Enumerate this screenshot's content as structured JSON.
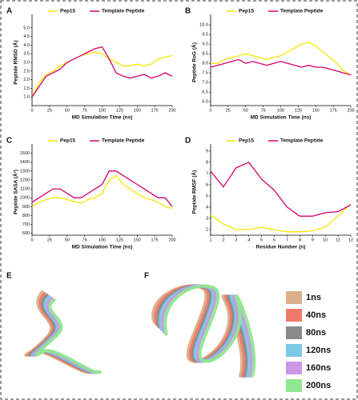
{
  "chart_data": [
    {
      "type": "line",
      "label": "A",
      "xlabel": "MD Simulation Time (ns)",
      "ylabel": "Peptide RMSD (Å)",
      "x": [
        0,
        10,
        20,
        30,
        40,
        50,
        60,
        70,
        80,
        90,
        100,
        110,
        120,
        130,
        140,
        150,
        160,
        170,
        180,
        190,
        200
      ],
      "series": [
        {
          "name": "Pep15",
          "color": "#f5e800",
          "values": [
            1.0,
            1.8,
            2.3,
            2.5,
            2.8,
            3.0,
            3.2,
            3.4,
            3.5,
            3.6,
            3.5,
            3.2,
            3.0,
            2.8,
            2.8,
            2.9,
            2.8,
            2.9,
            3.2,
            3.3,
            3.4
          ]
        },
        {
          "name": "Template Peptide",
          "color": "#d4006e",
          "values": [
            1.0,
            1.6,
            2.2,
            2.4,
            2.6,
            3.0,
            3.2,
            3.4,
            3.6,
            3.8,
            3.9,
            3.2,
            2.4,
            2.2,
            2.1,
            2.2,
            2.3,
            2.1,
            2.2,
            2.4,
            2.2
          ]
        }
      ],
      "xlim": [
        0,
        200
      ],
      "xticks": [
        0,
        25,
        50,
        75,
        100,
        125,
        150,
        175,
        200
      ],
      "ylim": [
        0.5,
        5.5
      ],
      "yticks": [
        {
          "value": 1,
          "label": "1.0"
        },
        1.5,
        {
          "value": 2,
          "label": "2.0"
        },
        2.5,
        {
          "value": 3,
          "label": "3.0"
        },
        3.5,
        {
          "value": 4,
          "label": "4.0"
        },
        4.5,
        {
          "value": 5,
          "label": "5.0"
        }
      ]
    },
    {
      "type": "line",
      "label": "B",
      "xlabel": "MD Simulation Time (ns)",
      "ylabel": "Peptide RoG (Å)",
      "x": [
        0,
        10,
        20,
        30,
        40,
        50,
        60,
        70,
        80,
        90,
        100,
        110,
        120,
        130,
        140,
        150,
        160,
        170,
        180,
        190,
        200
      ],
      "series": [
        {
          "name": "Pep15",
          "color": "#f5e800",
          "values": [
            8.0,
            8.0,
            8.2,
            8.3,
            8.4,
            8.5,
            8.4,
            8.3,
            8.2,
            8.3,
            8.4,
            8.6,
            8.8,
            9.0,
            9.1,
            8.9,
            8.6,
            8.3,
            8.0,
            7.6,
            7.4
          ]
        },
        {
          "name": "Template Peptide",
          "color": "#d4006e",
          "values": [
            7.8,
            7.9,
            8.0,
            8.1,
            8.2,
            8.0,
            8.1,
            8.0,
            7.9,
            8.0,
            8.1,
            8.0,
            7.9,
            7.8,
            7.9,
            7.8,
            7.8,
            7.7,
            7.6,
            7.5,
            7.4
          ]
        }
      ],
      "xlim": [
        0,
        200
      ],
      "xticks": [
        0,
        25,
        50,
        75,
        100,
        125,
        150,
        175,
        200
      ],
      "ylim": [
        5.8,
        10.3
      ],
      "yticks": [
        {
          "value": 6,
          "label": "6.0"
        },
        6.5,
        {
          "value": 7,
          "label": "7.0"
        },
        7.5,
        {
          "value": 8,
          "label": "8.0"
        },
        8.5,
        {
          "value": 9,
          "label": "9.0"
        },
        9.5,
        {
          "value": 10,
          "label": "10.0"
        }
      ]
    },
    {
      "type": "line",
      "label": "C",
      "xlabel": "MD Simulation Time (ns)",
      "ylabel": "Peptide SASA (Å²)",
      "x": [
        0,
        10,
        20,
        30,
        40,
        50,
        60,
        70,
        80,
        90,
        100,
        110,
        120,
        130,
        140,
        150,
        160,
        170,
        180,
        190,
        200
      ],
      "series": [
        {
          "name": "Pep15",
          "color": "#f5e800",
          "values": [
            900,
            950,
            980,
            1000,
            1000,
            980,
            960,
            940,
            980,
            1000,
            1050,
            1200,
            1250,
            1150,
            1100,
            1050,
            1000,
            980,
            950,
            900,
            880
          ]
        },
        {
          "name": "Template Peptide",
          "color": "#d4006e",
          "values": [
            950,
            1000,
            1050,
            1100,
            1100,
            1050,
            1000,
            1000,
            1050,
            1100,
            1150,
            1300,
            1300,
            1250,
            1200,
            1150,
            1100,
            1050,
            1000,
            1000,
            900
          ]
        }
      ],
      "xlim": [
        0,
        200
      ],
      "xticks": [
        0,
        25,
        50,
        75,
        100,
        125,
        150,
        175,
        200
      ],
      "ylim": [
        580,
        1550
      ],
      "yticks": [
        600,
        700,
        800,
        900,
        1000,
        1100,
        1200,
        1300,
        1400,
        1500
      ]
    },
    {
      "type": "line",
      "label": "D",
      "xlabel": "Residue Number (n)",
      "ylabel": "Peptide RMSF (Å)",
      "x": [
        1,
        2,
        3,
        4,
        5,
        6,
        7,
        8,
        9,
        10,
        11,
        12
      ],
      "series": [
        {
          "name": "Pep15",
          "color": "#f5e800",
          "values": [
            3.3,
            2.5,
            2.0,
            2.0,
            2.2,
            2.0,
            1.8,
            1.8,
            1.9,
            2.2,
            3.2,
            4.3
          ]
        },
        {
          "name": "Template Peptide",
          "color": "#d4006e",
          "values": [
            7.2,
            5.8,
            7.5,
            8.0,
            6.5,
            5.5,
            4.0,
            3.2,
            3.2,
            3.5,
            3.6,
            4.2
          ]
        }
      ],
      "xlim": [
        1,
        12
      ],
      "xticks": [
        1,
        2,
        3,
        4,
        5,
        6,
        7,
        8,
        9,
        10,
        11,
        12
      ],
      "ylim": [
        1.5,
        9.2
      ],
      "yticks": [
        2,
        3,
        4,
        5,
        6,
        7,
        8,
        9
      ]
    }
  ],
  "structure_panels": {
    "labels": [
      "E",
      "F"
    ],
    "legend": [
      {
        "name": "1ns",
        "color": "#d9b08a"
      },
      {
        "name": "40ns",
        "color": "#f07a68"
      },
      {
        "name": "80ns",
        "color": "#8a8a8a"
      },
      {
        "name": "120ns",
        "color": "#7cc8e4"
      },
      {
        "name": "160ns",
        "color": "#c996e8"
      },
      {
        "name": "200ns",
        "color": "#8fe88f"
      }
    ]
  }
}
